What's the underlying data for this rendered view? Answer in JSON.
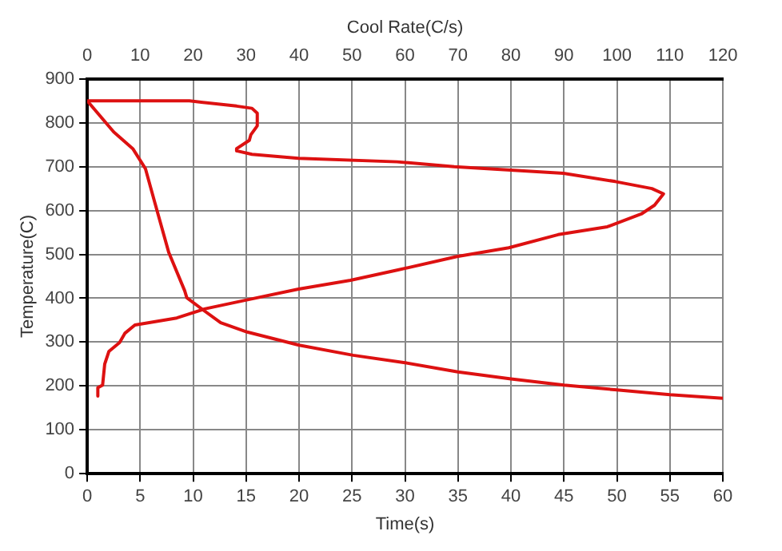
{
  "chart_data": {
    "type": "line",
    "xlabel": "Time(s)",
    "x2label": "Cool Rate(C/s)",
    "ylabel": "Temperature(C)",
    "xlim": [
      0,
      60
    ],
    "xticks": [
      0,
      5,
      10,
      15,
      20,
      25,
      30,
      35,
      40,
      45,
      50,
      55,
      60
    ],
    "x2lim": [
      0,
      120
    ],
    "x2ticks": [
      0,
      10,
      20,
      30,
      40,
      50,
      60,
      70,
      80,
      90,
      100,
      110,
      120
    ],
    "ylim": [
      0,
      900
    ],
    "yticks": [
      0,
      100,
      200,
      300,
      400,
      500,
      600,
      700,
      800,
      900
    ],
    "grid": true,
    "legend": false,
    "marker": "none",
    "line_style": "solid",
    "series": [
      {
        "color": "#dd1111",
        "x": [
          0,
          2.5,
          4.3,
          5.5,
          6.7,
          7.7,
          9.2,
          9.4,
          10.9,
          12.6,
          15.1,
          20,
          25.1,
          30,
          35,
          40,
          45,
          50,
          55,
          60
        ],
        "values": [
          850,
          779,
          741,
          695,
          590,
          504,
          417,
          401,
          374,
          344,
          323,
          293,
          270,
          253,
          232,
          216,
          202,
          191,
          180,
          172
        ]
      },
      {
        "color": "#dd1111",
        "axis": "x2",
        "x": [
          0,
          19.3,
          28.2,
          31.1,
          32.1,
          32.1,
          30.9,
          30.6,
          28.2,
          28.2,
          31.1,
          39.9,
          58.5,
          69.3,
          89.9,
          99.7,
          106.6,
          108.8,
          107.1,
          104.6,
          98.2,
          88.9,
          79.6,
          69.8,
          58.5,
          49.7,
          39.9,
          30.1,
          22.3,
          16.9,
          9,
          7.1,
          6.1,
          4.1,
          3.3,
          2.9,
          2,
          2
        ],
        "values": [
          850,
          850,
          838,
          833,
          822,
          793,
          773,
          760,
          741,
          736,
          728,
          719,
          711,
          700,
          685,
          666,
          650,
          638,
          612,
          592,
          563,
          545,
          515,
          495,
          464,
          441,
          421,
          396,
          376,
          355,
          339,
          320,
          299,
          279,
          250,
          202,
          196,
          177
        ]
      }
    ]
  }
}
